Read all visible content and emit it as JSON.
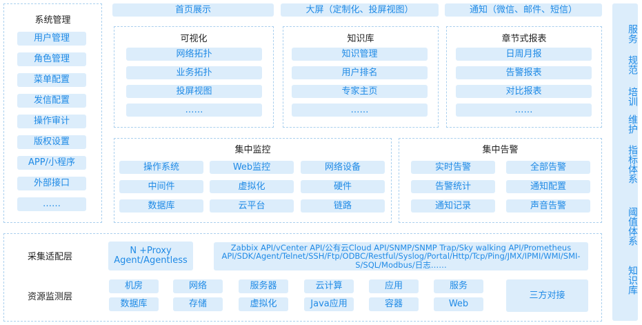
{
  "colors": {
    "box_fill": "#dcedfb",
    "text_blue": "#1f8ae6",
    "dashed_border": "#a9cfee"
  },
  "system_mgmt": {
    "title": "系统管理",
    "items": [
      "用户管理",
      "角色管理",
      "菜单配置",
      "发信配置",
      "操作审计",
      "版权设置",
      "APP/小程序",
      "外部接口",
      "……"
    ]
  },
  "top_bar": [
    "首页展示",
    "大屏（定制化、投屏视图）",
    "通知（微信、邮件、短信）"
  ],
  "visualization": {
    "title": "可视化",
    "items": [
      "网络拓扑",
      "业务拓扑",
      "投屏视图",
      "……"
    ]
  },
  "knowledge_base": {
    "title": "知识库",
    "items": [
      "知识管理",
      "用户排名",
      "专家主页",
      "……"
    ]
  },
  "reports": {
    "title": "章节式报表",
    "items": [
      "日周月报",
      "告警报表",
      "对比报表",
      "……"
    ]
  },
  "monitoring": {
    "title": "集中监控",
    "items": [
      "操作系统",
      "Web监控",
      "网络设备",
      "中间件",
      "虚拟化",
      "硬件",
      "数据库",
      "云平台",
      "链路"
    ]
  },
  "alerting": {
    "title": "集中告警",
    "items": [
      "实时告警",
      "全部告警",
      "告警统计",
      "通知配置",
      "通知记录",
      "声音告警"
    ]
  },
  "collection_layer": {
    "label": "采集适配层",
    "proxy": "N +Proxy\nAgent/Agentless",
    "protocols": "Zabbix API/vCenter API/公有云Cloud API/SNMP/SNMP Trap/Sky walking API/Prometheus API/SDK/Agent/Telnet/SSH/Ftp/ODBC/Restful/Syslog/Portal/Http/Tcp/Ping/JMX/IPMI/WMI/SMI-S/SQL/Modbus/日志……"
  },
  "resource_layer": {
    "label": "资源监测层",
    "items": [
      "机房",
      "网络",
      "服务器",
      "云计算",
      "应用",
      "服务",
      "数据库",
      "存储",
      "虚拟化",
      "Java应用",
      "容器",
      "Web"
    ],
    "third_party": "三方对接"
  },
  "side_panel": [
    "服务",
    "规范",
    "培训",
    "维护",
    "指标体系",
    "阈值体系",
    "知识库"
  ]
}
